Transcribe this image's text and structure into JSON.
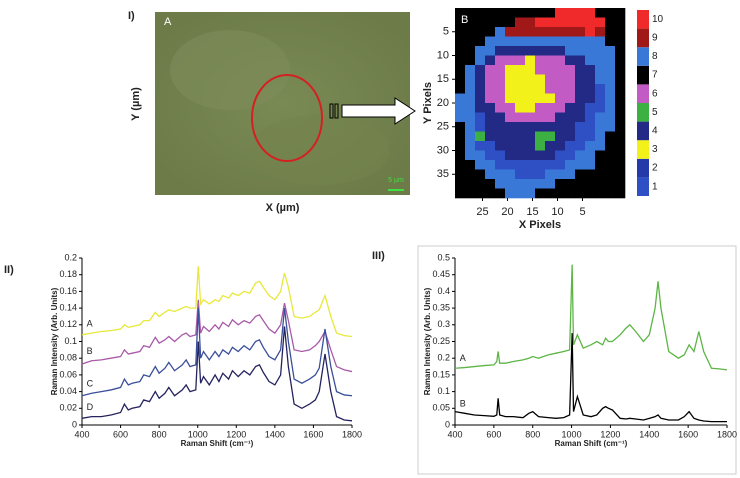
{
  "chart_data": [
    {
      "type": "image",
      "panel_label": "I)",
      "title": "A",
      "xlabel": "X (µm)",
      "ylabel": "Y (µm)",
      "scale_bar": "5 µm"
    },
    {
      "type": "heatmap",
      "title": "B",
      "xlabel": "X Pixels",
      "ylabel": "Y Pixels",
      "xlim": [
        30.5,
        -3.5
      ],
      "ylim": [
        0,
        40
      ],
      "xticks": [
        25,
        20,
        15,
        10,
        5
      ],
      "yticks": [
        5,
        10,
        15,
        20,
        25,
        30,
        35
      ],
      "z": [
        [
          7,
          7,
          7,
          7,
          7,
          7,
          7,
          7,
          7,
          7,
          10,
          10,
          10,
          10,
          7,
          7,
          7
        ],
        [
          7,
          7,
          7,
          7,
          7,
          7,
          9,
          9,
          10,
          10,
          10,
          10,
          10,
          10,
          10,
          7,
          7
        ],
        [
          7,
          7,
          7,
          7,
          8,
          9,
          9,
          9,
          9,
          9,
          9,
          9,
          9,
          10,
          9,
          7,
          7
        ],
        [
          7,
          7,
          7,
          8,
          8,
          8,
          8,
          8,
          8,
          8,
          8,
          8,
          8,
          8,
          8,
          7,
          7
        ],
        [
          7,
          7,
          8,
          8,
          4,
          4,
          4,
          4,
          4,
          4,
          4,
          8,
          8,
          8,
          8,
          8,
          7
        ],
        [
          7,
          7,
          8,
          4,
          6,
          6,
          6,
          3,
          6,
          6,
          6,
          4,
          4,
          8,
          8,
          8,
          7
        ],
        [
          7,
          8,
          4,
          6,
          6,
          3,
          3,
          3,
          6,
          6,
          6,
          6,
          4,
          4,
          8,
          8,
          7
        ],
        [
          7,
          8,
          4,
          6,
          6,
          3,
          3,
          3,
          3,
          6,
          6,
          6,
          4,
          4,
          8,
          8,
          7
        ],
        [
          7,
          8,
          4,
          6,
          6,
          3,
          3,
          3,
          3,
          6,
          6,
          6,
          4,
          4,
          1,
          8,
          7
        ],
        [
          8,
          8,
          4,
          6,
          6,
          3,
          3,
          3,
          3,
          3,
          6,
          6,
          4,
          4,
          1,
          8,
          7
        ],
        [
          8,
          8,
          4,
          4,
          6,
          6,
          3,
          3,
          6,
          6,
          6,
          4,
          4,
          1,
          1,
          8,
          7
        ],
        [
          8,
          8,
          1,
          4,
          4,
          6,
          6,
          6,
          6,
          6,
          4,
          4,
          4,
          1,
          8,
          8,
          7
        ],
        [
          7,
          8,
          1,
          4,
          4,
          4,
          4,
          4,
          4,
          4,
          4,
          4,
          1,
          1,
          8,
          8,
          7
        ],
        [
          7,
          8,
          5,
          4,
          4,
          4,
          4,
          4,
          5,
          5,
          4,
          4,
          1,
          1,
          8,
          7,
          7
        ],
        [
          7,
          8,
          1,
          1,
          4,
          4,
          4,
          4,
          5,
          4,
          4,
          1,
          1,
          8,
          8,
          7,
          7
        ],
        [
          7,
          8,
          8,
          1,
          1,
          4,
          4,
          4,
          4,
          4,
          1,
          1,
          8,
          8,
          7,
          7,
          7
        ],
        [
          7,
          7,
          8,
          8,
          1,
          1,
          1,
          1,
          1,
          1,
          1,
          8,
          8,
          8,
          7,
          7,
          7
        ],
        [
          7,
          7,
          7,
          8,
          8,
          8,
          1,
          1,
          1,
          8,
          8,
          8,
          7,
          7,
          7,
          7,
          7
        ],
        [
          7,
          7,
          7,
          7,
          8,
          8,
          8,
          8,
          8,
          8,
          7,
          7,
          7,
          7,
          7,
          7,
          7
        ],
        [
          7,
          7,
          7,
          7,
          7,
          8,
          8,
          8,
          7,
          7,
          7,
          7,
          7,
          7,
          7,
          7,
          7
        ]
      ],
      "colorbar": {
        "ticks": [
          1,
          2,
          3,
          4,
          5,
          6,
          7,
          8,
          9,
          10
        ],
        "colors": [
          "#2f4fc4",
          "#233aa8",
          "#f2f21a",
          "#232a86",
          "#3cb043",
          "#c25cc4",
          "#000000",
          "#3a78d8",
          "#a01818",
          "#f02a2a"
        ]
      }
    },
    {
      "type": "line",
      "panel_label": "II)",
      "xlabel": "Raman Shift (cm⁻¹)",
      "ylabel": "Raman Intensity (Arb. Units)",
      "xlim": [
        400,
        1800
      ],
      "ylim": [
        0,
        0.2
      ],
      "xticks": [
        400,
        600,
        800,
        1000,
        1200,
        1400,
        1600,
        1800
      ],
      "yticks": [
        0,
        0.02,
        0.04,
        0.06,
        0.08,
        0.1,
        0.12,
        0.14,
        0.16,
        0.18,
        0.2
      ],
      "x": [
        400,
        450,
        500,
        550,
        600,
        620,
        640,
        660,
        700,
        720,
        750,
        780,
        800,
        830,
        850,
        880,
        920,
        940,
        960,
        990,
        1003,
        1015,
        1030,
        1060,
        1090,
        1110,
        1130,
        1160,
        1180,
        1210,
        1240,
        1270,
        1300,
        1320,
        1340,
        1370,
        1400,
        1430,
        1450,
        1470,
        1500,
        1540,
        1580,
        1610,
        1630,
        1660,
        1690,
        1720,
        1760,
        1800
      ],
      "series": [
        {
          "name": "A",
          "color": "#e8e83a",
          "values": [
            0.108,
            0.11,
            0.112,
            0.113,
            0.115,
            0.12,
            0.117,
            0.118,
            0.12,
            0.125,
            0.125,
            0.135,
            0.13,
            0.135,
            0.138,
            0.136,
            0.14,
            0.142,
            0.14,
            0.14,
            0.19,
            0.145,
            0.15,
            0.145,
            0.15,
            0.148,
            0.155,
            0.152,
            0.158,
            0.155,
            0.16,
            0.158,
            0.17,
            0.172,
            0.165,
            0.155,
            0.15,
            0.16,
            0.182,
            0.165,
            0.13,
            0.128,
            0.13,
            0.135,
            0.138,
            0.155,
            0.13,
            0.11,
            0.107,
            0.106
          ]
        },
        {
          "name": "B",
          "color": "#a85aa8",
          "values": [
            0.073,
            0.077,
            0.078,
            0.08,
            0.082,
            0.09,
            0.085,
            0.086,
            0.088,
            0.095,
            0.093,
            0.105,
            0.098,
            0.102,
            0.106,
            0.1,
            0.108,
            0.11,
            0.106,
            0.108,
            0.15,
            0.11,
            0.118,
            0.112,
            0.12,
            0.115,
            0.123,
            0.118,
            0.126,
            0.12,
            0.125,
            0.122,
            0.13,
            0.132,
            0.125,
            0.115,
            0.11,
            0.12,
            0.146,
            0.125,
            0.09,
            0.088,
            0.09,
            0.095,
            0.1,
            0.112,
            0.09,
            0.07,
            0.066,
            0.064
          ]
        },
        {
          "name": "C",
          "color": "#3a4f9a",
          "values": [
            0.035,
            0.038,
            0.04,
            0.042,
            0.045,
            0.055,
            0.048,
            0.05,
            0.052,
            0.06,
            0.058,
            0.07,
            0.062,
            0.068,
            0.075,
            0.065,
            0.072,
            0.078,
            0.07,
            0.072,
            0.14,
            0.08,
            0.088,
            0.078,
            0.088,
            0.082,
            0.09,
            0.085,
            0.093,
            0.088,
            0.095,
            0.09,
            0.1,
            0.102,
            0.093,
            0.082,
            0.078,
            0.09,
            0.14,
            0.1,
            0.055,
            0.05,
            0.055,
            0.06,
            0.068,
            0.115,
            0.07,
            0.04,
            0.036,
            0.035
          ]
        },
        {
          "name": "D",
          "color": "#25235e",
          "values": [
            0.008,
            0.01,
            0.01,
            0.012,
            0.015,
            0.025,
            0.018,
            0.02,
            0.022,
            0.03,
            0.028,
            0.04,
            0.032,
            0.038,
            0.045,
            0.035,
            0.042,
            0.048,
            0.04,
            0.042,
            0.1,
            0.05,
            0.058,
            0.048,
            0.06,
            0.052,
            0.062,
            0.055,
            0.065,
            0.058,
            0.065,
            0.06,
            0.07,
            0.072,
            0.063,
            0.052,
            0.048,
            0.06,
            0.118,
            0.07,
            0.025,
            0.02,
            0.025,
            0.03,
            0.04,
            0.085,
            0.04,
            0.01,
            0.006,
            0.005
          ]
        }
      ]
    },
    {
      "type": "line",
      "panel_label": "III)",
      "xlabel": "Raman Shift (cm⁻¹)",
      "ylabel": "Raman Intensity (Arb. Units)",
      "xlim": [
        400,
        1800
      ],
      "ylim": [
        0,
        0.5
      ],
      "xticks": [
        400,
        600,
        800,
        1000,
        1200,
        1400,
        1600,
        1800
      ],
      "yticks": [
        0,
        0.05,
        0.1,
        0.15,
        0.2,
        0.25,
        0.3,
        0.35,
        0.4,
        0.45,
        0.5
      ],
      "x": [
        400,
        450,
        500,
        550,
        600,
        615,
        622,
        630,
        660,
        700,
        750,
        780,
        800,
        830,
        880,
        920,
        960,
        990,
        1003,
        1010,
        1030,
        1060,
        1100,
        1130,
        1160,
        1175,
        1190,
        1210,
        1250,
        1280,
        1300,
        1330,
        1370,
        1400,
        1430,
        1445,
        1460,
        1500,
        1550,
        1580,
        1605,
        1630,
        1655,
        1680,
        1720,
        1760,
        1800
      ],
      "series": [
        {
          "name": "A",
          "color": "#5cb545",
          "values": [
            0.17,
            0.172,
            0.175,
            0.178,
            0.18,
            0.19,
            0.22,
            0.185,
            0.185,
            0.19,
            0.195,
            0.2,
            0.205,
            0.2,
            0.21,
            0.215,
            0.22,
            0.225,
            0.48,
            0.24,
            0.27,
            0.23,
            0.24,
            0.25,
            0.24,
            0.26,
            0.25,
            0.25,
            0.27,
            0.29,
            0.3,
            0.28,
            0.25,
            0.27,
            0.35,
            0.43,
            0.35,
            0.22,
            0.2,
            0.21,
            0.24,
            0.22,
            0.28,
            0.22,
            0.17,
            0.168,
            0.165
          ]
        },
        {
          "name": "B",
          "color": "#000000",
          "values": [
            0.04,
            0.035,
            0.03,
            0.028,
            0.026,
            0.03,
            0.08,
            0.03,
            0.025,
            0.025,
            0.022,
            0.035,
            0.04,
            0.025,
            0.022,
            0.02,
            0.022,
            0.03,
            0.275,
            0.04,
            0.085,
            0.03,
            0.025,
            0.03,
            0.05,
            0.055,
            0.05,
            0.045,
            0.02,
            0.018,
            0.02,
            0.018,
            0.015,
            0.02,
            0.025,
            0.03,
            0.02,
            0.015,
            0.015,
            0.025,
            0.04,
            0.02,
            0.015,
            0.012,
            0.01,
            0.01,
            0.01
          ]
        }
      ]
    }
  ]
}
